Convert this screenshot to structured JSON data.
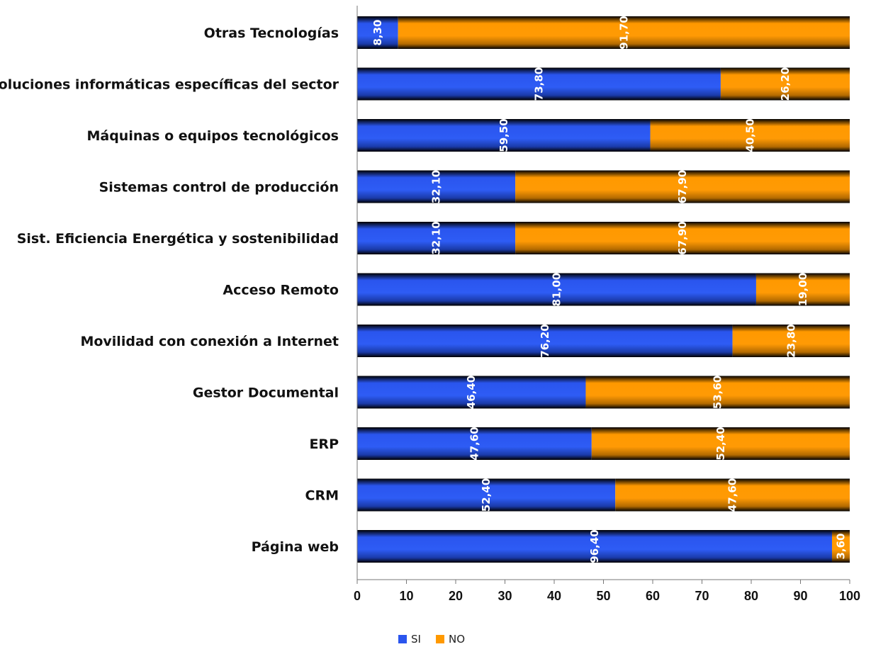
{
  "chart_data": {
    "type": "bar",
    "orientation": "horizontal",
    "stacked": true,
    "categories": [
      "Otras Tecnologías",
      "Soluciones informáticas específicas del sector",
      "Máquinas o equipos tecnológicos",
      "Sistemas control de producción",
      "Sist. Eficiencia Energética y sostenibilidad",
      "Acceso Remoto",
      "Movilidad con conexión a Internet",
      "Gestor Documental",
      "ERP",
      "CRM",
      "Página web"
    ],
    "series": [
      {
        "name": "SI",
        "color": "#2a55ee",
        "values": [
          8.3,
          73.8,
          59.5,
          32.1,
          32.1,
          81.0,
          76.2,
          46.4,
          47.6,
          52.4,
          96.4
        ],
        "labels": [
          "8,30",
          "73,80",
          "59,50",
          "32,10",
          "32,10",
          "81,00",
          "76,20",
          "46,40",
          "47,60",
          "52,40",
          "96,40"
        ]
      },
      {
        "name": "NO",
        "color": "#ff9900",
        "values": [
          91.7,
          26.2,
          40.5,
          67.9,
          67.9,
          19.0,
          23.8,
          53.6,
          52.4,
          47.6,
          3.6
        ],
        "labels": [
          "91,70",
          "26,20",
          "40,50",
          "67,90",
          "67,90",
          "19,00",
          "23,80",
          "53,60",
          "52,40",
          "47,60",
          "3,60"
        ]
      }
    ],
    "xlim": [
      0,
      100
    ],
    "xticks": [
      "0",
      "10",
      "20",
      "30",
      "40",
      "50",
      "60",
      "70",
      "80",
      "90",
      "100"
    ],
    "grid": false,
    "legend_position": "bottom"
  }
}
